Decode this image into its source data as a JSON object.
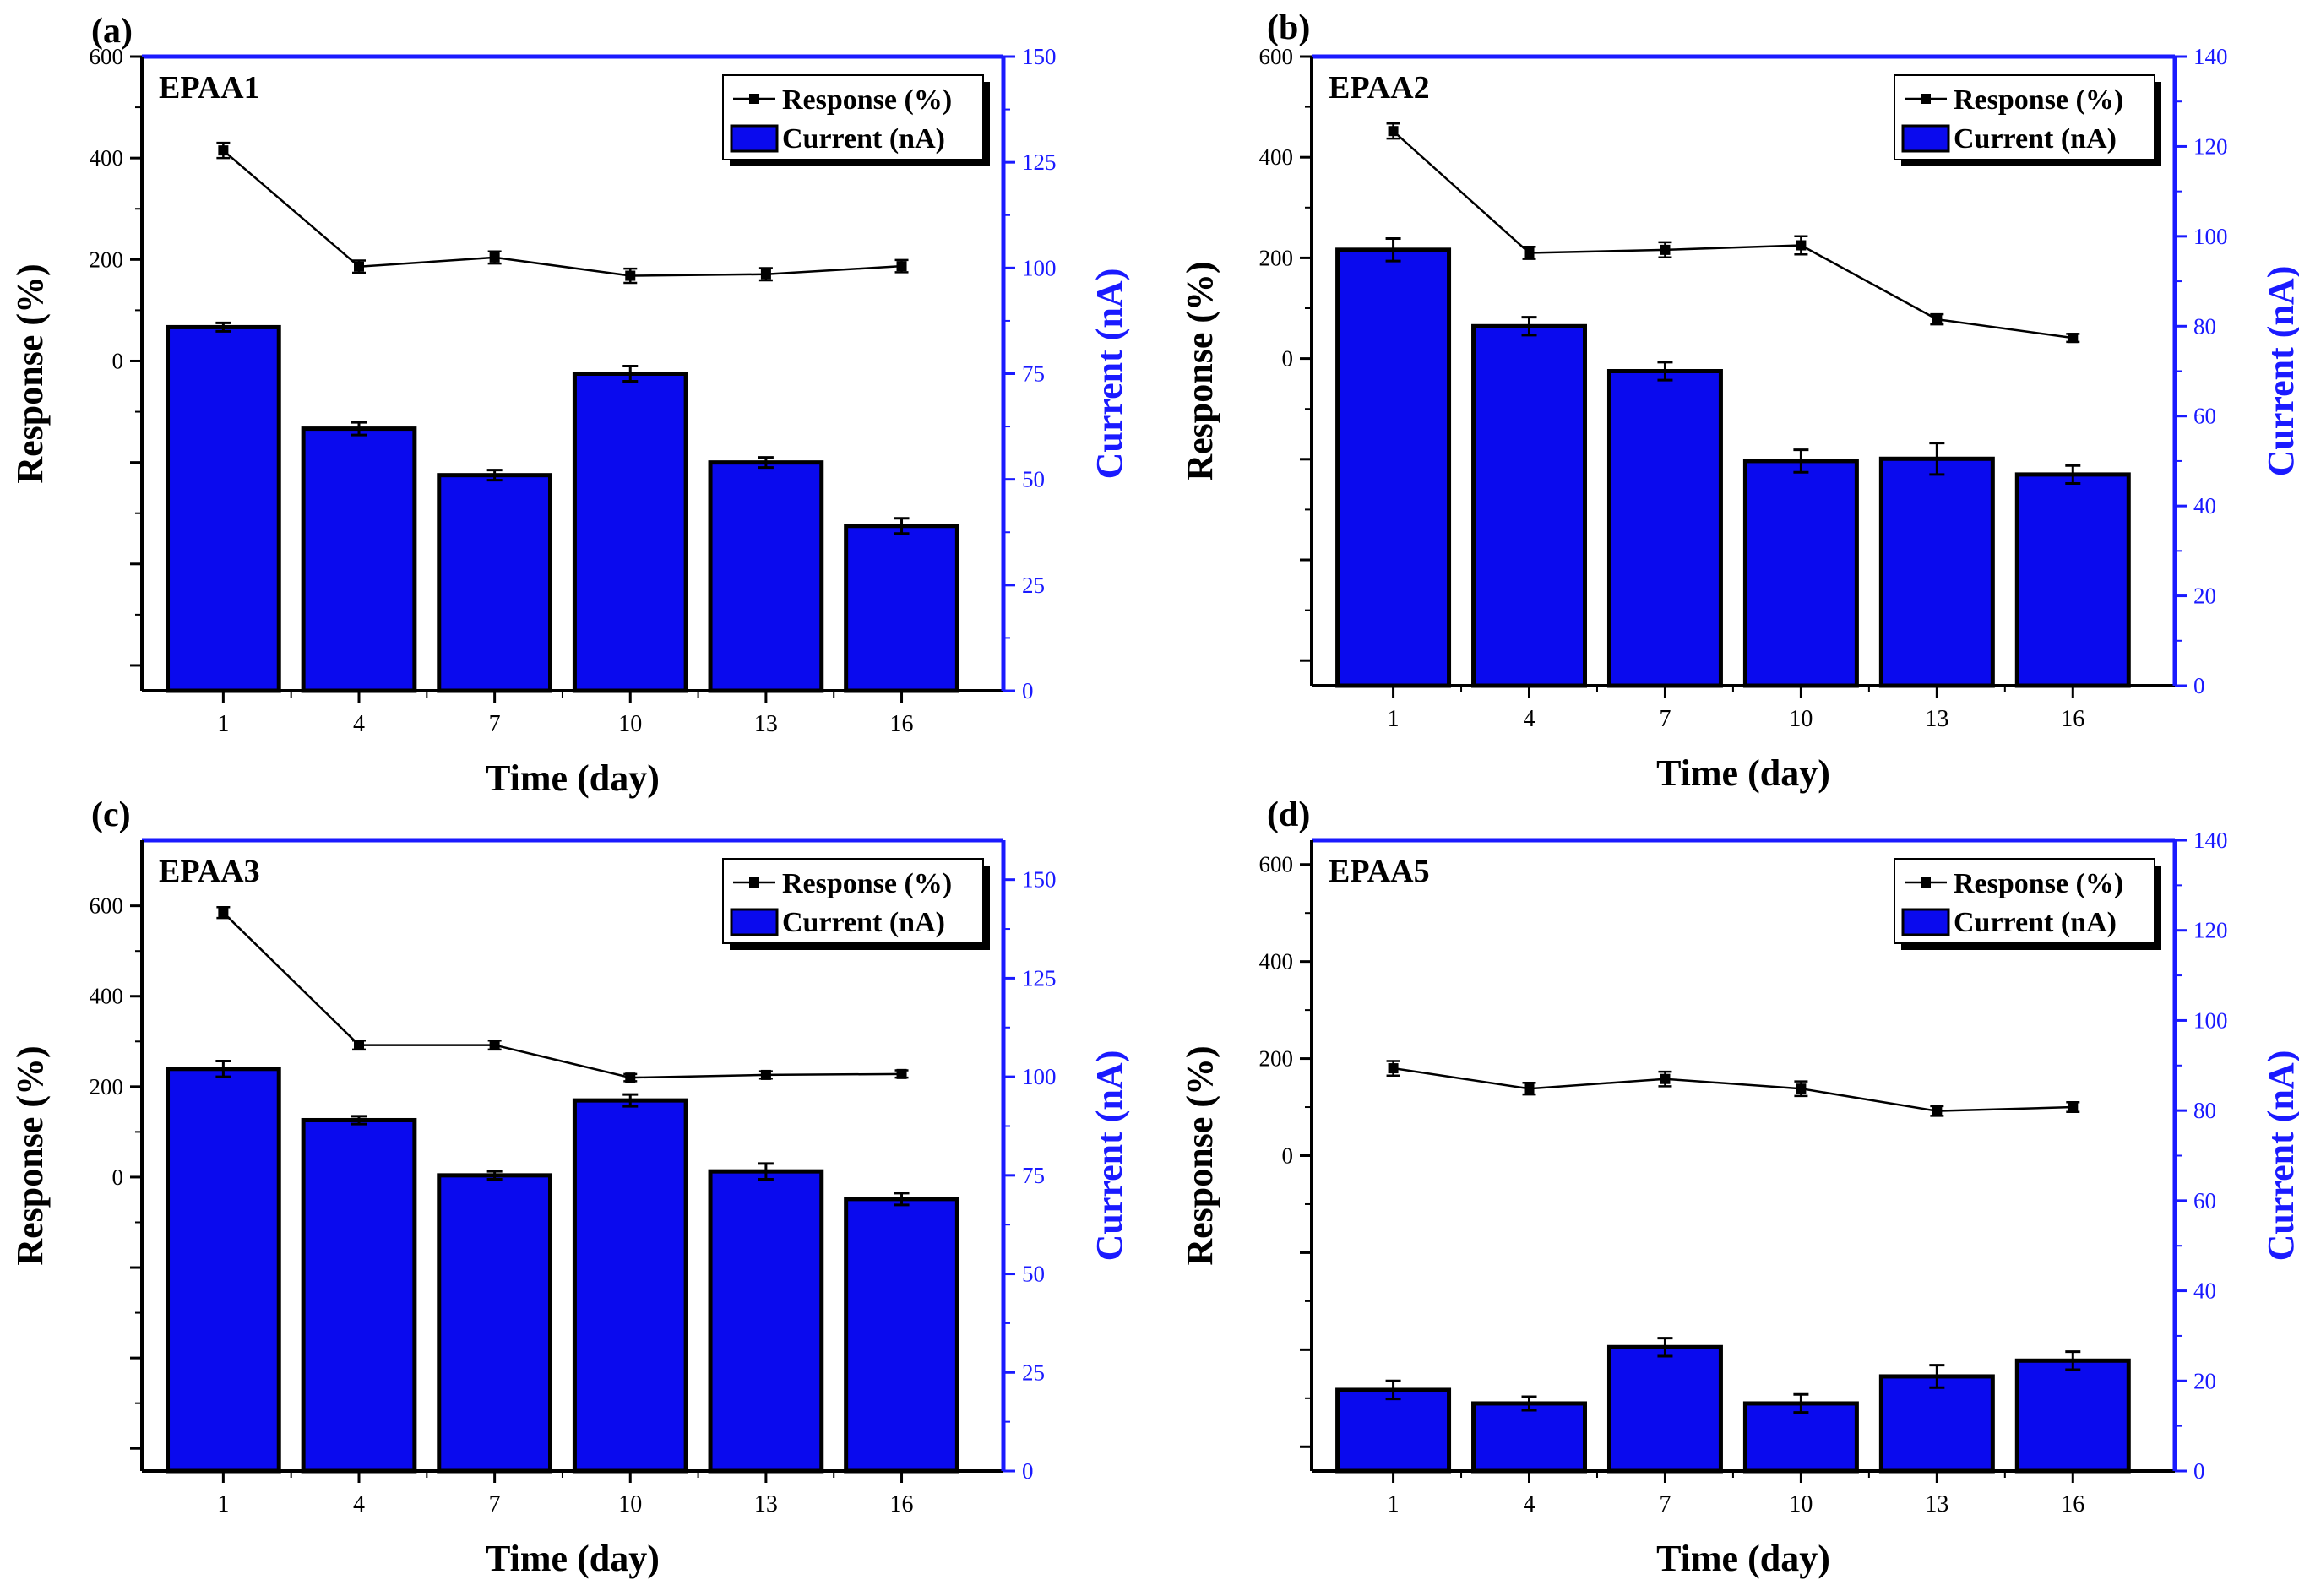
{
  "chart_data": [
    {
      "type": "bar",
      "panel_label": "(a)",
      "title": "EPAA1",
      "xlabel": "Time (day)",
      "ylabel": "Response (%)",
      "y2label": "Current (nA)",
      "categories": [
        "1",
        "4",
        "7",
        "10",
        "13",
        "16"
      ],
      "left_axis": {
        "ticks": [
          600,
          400,
          200,
          0
        ],
        "value_at_top": 600,
        "value_at_bottom": -650
      },
      "right_axis": {
        "ticks": [
          0,
          25,
          50,
          75,
          100,
          125,
          150
        ],
        "ylim": [
          0,
          150
        ]
      },
      "series": [
        {
          "name": "Response (%)",
          "kind": "line",
          "axis": "left",
          "values": [
            415,
            186,
            204,
            168,
            171,
            187
          ],
          "errors": [
            15,
            12,
            12,
            14,
            12,
            12
          ]
        },
        {
          "name": "Current (nA)",
          "kind": "bar",
          "axis": "right",
          "values": [
            86,
            62,
            51,
            75,
            54,
            39
          ],
          "errors": [
            1,
            1.5,
            1.2,
            1.8,
            1.2,
            1.8
          ]
        }
      ]
    },
    {
      "type": "bar",
      "panel_label": "(b)",
      "title": "EPAA2",
      "xlabel": "Time (day)",
      "ylabel": "Response (%)",
      "y2label": "Current (nA)",
      "categories": [
        "1",
        "4",
        "7",
        "10",
        "13",
        "16"
      ],
      "left_axis": {
        "ticks": [
          600,
          400,
          200,
          0
        ],
        "value_at_top": 600,
        "value_at_bottom": -650
      },
      "right_axis": {
        "ticks": [
          0,
          20,
          40,
          60,
          80,
          100,
          120,
          140
        ],
        "ylim": [
          0,
          140
        ]
      },
      "series": [
        {
          "name": "Response (%)",
          "kind": "line",
          "axis": "left",
          "values": [
            452,
            210,
            216,
            225,
            78,
            41
          ],
          "errors": [
            15,
            12,
            15,
            18,
            10,
            8
          ]
        },
        {
          "name": "Current (nA)",
          "kind": "bar",
          "axis": "right",
          "values": [
            97,
            80,
            70,
            50,
            50.5,
            47
          ],
          "errors": [
            2.5,
            2,
            2,
            2.5,
            3.5,
            2
          ]
        }
      ]
    },
    {
      "type": "bar",
      "panel_label": "(c)",
      "title": "EPAA3",
      "xlabel": "Time (day)",
      "ylabel": "Response (%)",
      "y2label": "Current (nA)",
      "categories": [
        "1",
        "4",
        "7",
        "10",
        "13",
        "16"
      ],
      "left_axis": {
        "ticks": [
          600,
          400,
          200,
          0
        ],
        "value_at_top": 745,
        "value_at_bottom": -650
      },
      "right_axis": {
        "ticks": [
          0,
          25,
          50,
          75,
          100,
          125,
          150
        ],
        "ylim": [
          0,
          160
        ]
      },
      "series": [
        {
          "name": "Response (%)",
          "kind": "line",
          "axis": "left",
          "values": [
            585,
            292,
            292,
            220,
            226,
            228
          ],
          "errors": [
            12,
            10,
            10,
            8,
            8,
            8
          ]
        },
        {
          "name": "Current (nA)",
          "kind": "bar",
          "axis": "right",
          "values": [
            102,
            89,
            75,
            94,
            76,
            69
          ],
          "errors": [
            2,
            1,
            1,
            1.5,
            2,
            1.5
          ]
        }
      ]
    },
    {
      "type": "bar",
      "panel_label": "(d)",
      "title": "EPAA5",
      "xlabel": "Time (day)",
      "ylabel": "Response (%)",
      "y2label": "Current (nA)",
      "categories": [
        "1",
        "4",
        "7",
        "10",
        "13",
        "16"
      ],
      "left_axis": {
        "ticks": [
          600,
          400,
          200,
          0
        ],
        "value_at_top": 650,
        "value_at_bottom": -650
      },
      "right_axis": {
        "ticks": [
          0,
          20,
          40,
          60,
          80,
          100,
          120,
          140
        ],
        "ylim": [
          0,
          140
        ]
      },
      "series": [
        {
          "name": "Response (%)",
          "kind": "line",
          "axis": "left",
          "values": [
            180,
            138,
            158,
            138,
            92,
            100
          ],
          "errors": [
            15,
            12,
            15,
            15,
            10,
            10
          ]
        },
        {
          "name": "Current (nA)",
          "kind": "bar",
          "axis": "right",
          "values": [
            18,
            15,
            27.5,
            15,
            21,
            24.5
          ],
          "errors": [
            2,
            1.5,
            2,
            2,
            2.5,
            2
          ]
        }
      ]
    }
  ],
  "colors": {
    "bar": "#0a0aee",
    "right_axis": "#1a1aff",
    "frame_top": "#1a1aff",
    "line": "#000000"
  }
}
